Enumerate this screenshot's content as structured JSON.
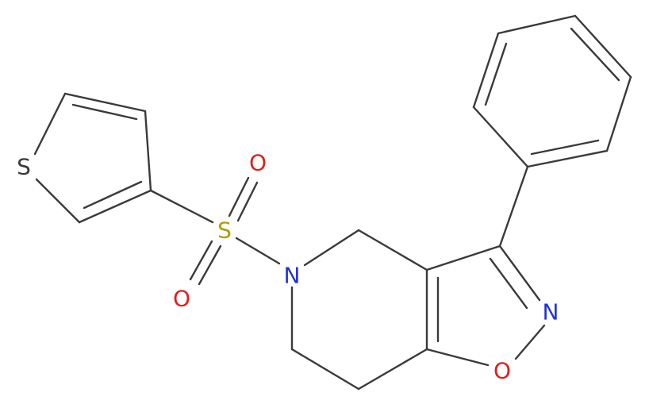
{
  "atoms": [
    {
      "label": "S"
    },
    {
      "label": "S"
    },
    {
      "label": "O"
    },
    {
      "label": "O"
    },
    {
      "label": "N"
    },
    {
      "label": "N"
    },
    {
      "label": "O"
    }
  ]
}
